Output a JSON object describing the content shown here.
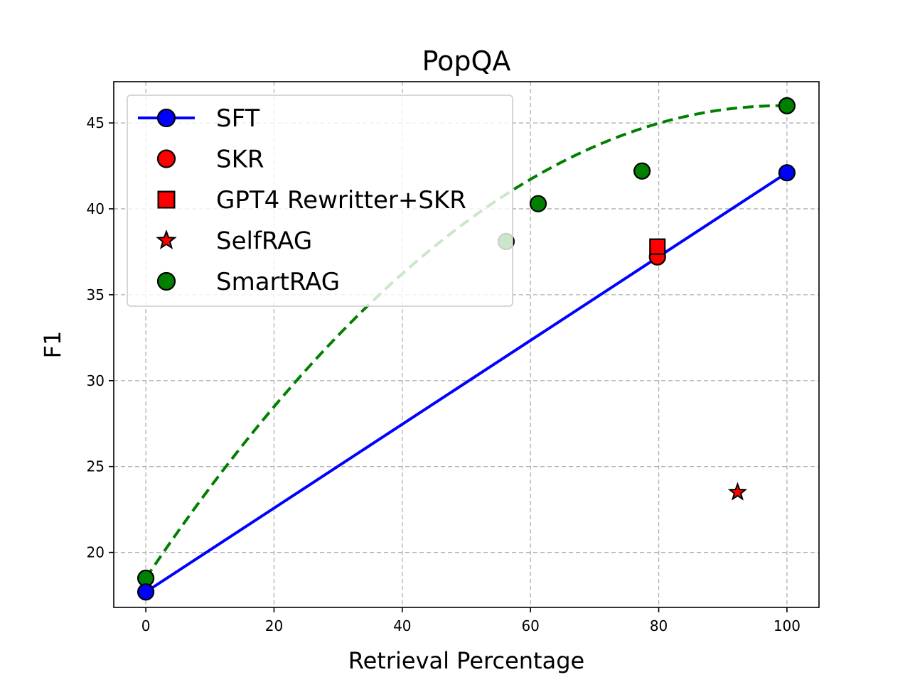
{
  "chart_data": {
    "type": "scatter",
    "title": "PopQA",
    "xlabel": "Retrieval Percentage",
    "ylabel": "F1",
    "xlim": [
      -5,
      105
    ],
    "ylim": [
      16.8,
      47.4
    ],
    "xticks": [
      0,
      20,
      40,
      60,
      80,
      100
    ],
    "yticks": [
      20,
      25,
      30,
      35,
      40,
      45
    ],
    "grid": true,
    "legend_position": "upper-left",
    "series": [
      {
        "name": "SFT",
        "kind": "line",
        "color": "#0000ff",
        "marker": "circle",
        "points": [
          {
            "x": 0,
            "y": 17.7
          },
          {
            "x": 100,
            "y": 42.1
          }
        ]
      },
      {
        "name": "SKR",
        "kind": "scatter",
        "color": "#ff0000",
        "marker": "circle",
        "points": [
          {
            "x": 79.8,
            "y": 37.2
          }
        ]
      },
      {
        "name": "GPT4 Rewritter+SKR",
        "kind": "scatter",
        "color": "#ff0000",
        "marker": "square",
        "points": [
          {
            "x": 79.8,
            "y": 37.8
          }
        ]
      },
      {
        "name": "SelfRAG",
        "kind": "scatter",
        "color": "#ff0000",
        "marker": "star",
        "points": [
          {
            "x": 92.3,
            "y": 23.5
          }
        ]
      },
      {
        "name": "SmartRAG",
        "kind": "scatter",
        "color": "#008000",
        "marker": "circle",
        "points": [
          {
            "x": 0,
            "y": 18.5
          },
          {
            "x": 56.2,
            "y": 38.1
          },
          {
            "x": 61.2,
            "y": 40.3
          },
          {
            "x": 77.4,
            "y": 42.2
          },
          {
            "x": 100,
            "y": 46.0
          }
        ]
      }
    ],
    "trend": {
      "name": "SmartRAG fit",
      "color": "#008000",
      "style": "dashed",
      "quadratic": {
        "a": -0.0028,
        "b": 0.555,
        "c": 18.5
      },
      "x_range": [
        0,
        100
      ]
    }
  }
}
